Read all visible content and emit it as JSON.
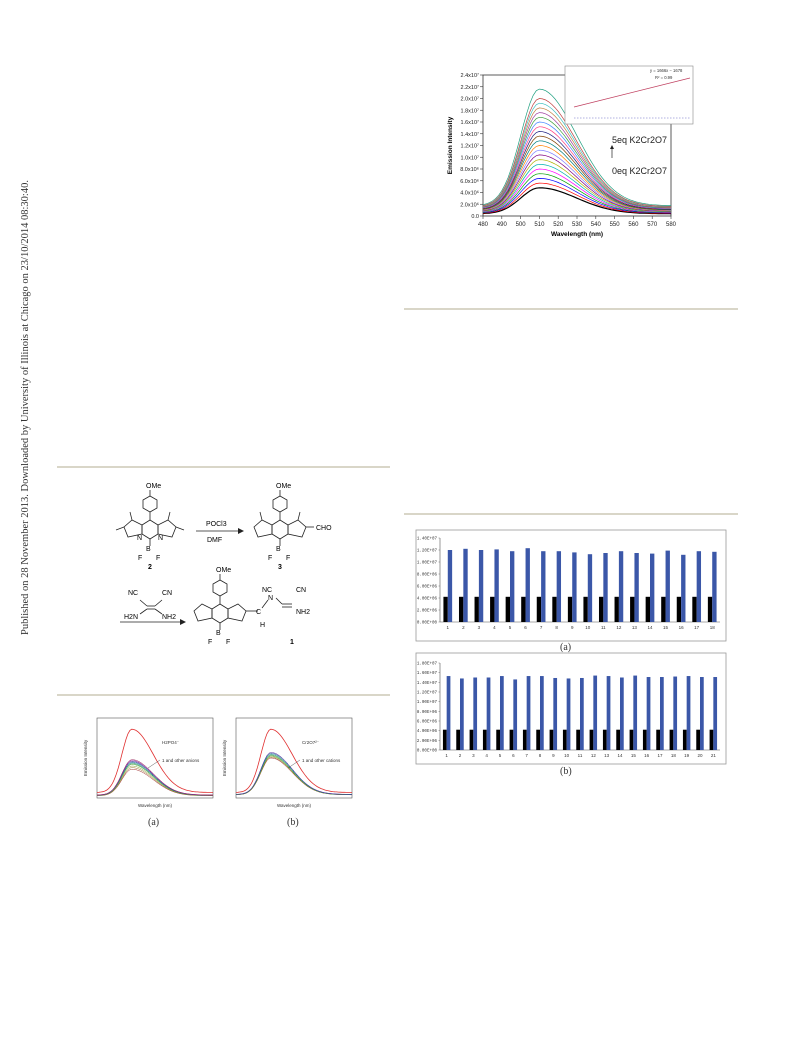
{
  "watermark": "Published on 28 November 2013. Downloaded by University of Illinois at Chicago on 23/10/2014 08:30:40.",
  "scheme": {
    "reagent1_top": "POCl3",
    "reagent1_bottom": "DMF",
    "reagent2_left": "NC",
    "reagent2_right": "CN",
    "reagent2_h2n": "H2N",
    "reagent2_nh2": "NH2",
    "label_2": "2",
    "label_3": "3",
    "label_1": "1",
    "ome": "OMe",
    "cho": "CHO",
    "b": "B",
    "f": "F",
    "n": "N",
    "nc": "NC",
    "cn": "CN",
    "nh2": "NH2",
    "c": "C",
    "h": "H"
  },
  "chart_data": [
    {
      "id": "titration",
      "type": "line",
      "xlabel": "Wavelength (nm)",
      "ylabel": "Emission Intensity",
      "x_ticks": [
        480,
        490,
        500,
        510,
        520,
        530,
        540,
        550,
        560,
        570,
        580
      ],
      "y_ticks": [
        "0.0",
        "2.0x10⁶",
        "4.0x10⁶",
        "6.0x10⁶",
        "8.0x10⁶",
        "1.0x10⁷",
        "1.2x10⁷",
        "1.4x10⁷",
        "1.6x10⁷",
        "1.8x10⁷",
        "2.0x10⁷",
        "2.2x10⁷",
        "2.4x10⁷"
      ],
      "xlim": [
        480,
        580
      ],
      "ylim": [
        0,
        24000000
      ],
      "peak_x": 510,
      "peaks": [
        4800000,
        5600000,
        6400000,
        7200000,
        8000000,
        8800000,
        9600000,
        10400000,
        11200000,
        12000000,
        12800000,
        13600000,
        14400000,
        15200000,
        16000000,
        16800000,
        17600000,
        18400000,
        19200000,
        20000000,
        21600000
      ],
      "colors": [
        "#000000",
        "#ff0000",
        "#0000ff",
        "#00a000",
        "#ff00ff",
        "#00b0b0",
        "#b0b000",
        "#800080",
        "#8080ff",
        "#ff8000",
        "#008080",
        "#804000",
        "#202080",
        "#ff4080",
        "#4080ff",
        "#40a040",
        "#a040a0",
        "#c08040",
        "#40c0c0",
        "#c04040",
        "#20a080"
      ],
      "annotation_top": "5eq  K2Cr2O7",
      "annotation_bottom": "0eq  K2Cr2O7",
      "inset_equation": "y = 1666x − 1678",
      "inset_r2": "R² = 0.99"
    },
    {
      "id": "bars_a",
      "type": "bar",
      "categories": [
        "1",
        "2",
        "3",
        "4",
        "5",
        "6",
        "7",
        "8",
        "9",
        "10",
        "11",
        "12",
        "13",
        "14",
        "15",
        "16",
        "17",
        "18"
      ],
      "y_ticks": [
        "0.00E+00",
        "2.00E+06",
        "4.00E+06",
        "6.00E+06",
        "8.00E+06",
        "1.00E+07",
        "1.20E+07",
        "1.40E+07"
      ],
      "ylim": [
        0,
        14000000
      ],
      "series": [
        {
          "color": "#000000",
          "values": [
            4200000,
            4200000,
            4200000,
            4200000,
            4200000,
            4200000,
            4200000,
            4200000,
            4200000,
            4200000,
            4200000,
            4200000,
            4200000,
            4200000,
            4200000,
            4200000,
            4200000,
            4200000
          ]
        },
        {
          "color": "#3b57a8",
          "values": [
            12000000,
            12200000,
            12000000,
            12100000,
            11800000,
            12300000,
            11800000,
            11800000,
            11600000,
            11300000,
            11500000,
            11800000,
            11500000,
            11400000,
            11900000,
            11200000,
            11800000,
            11700000
          ]
        }
      ],
      "caption": "(a)"
    },
    {
      "id": "bars_b",
      "type": "bar",
      "categories": [
        "1",
        "2",
        "3",
        "4",
        "5",
        "6",
        "7",
        "8",
        "9",
        "10",
        "11",
        "12",
        "13",
        "14",
        "15",
        "16",
        "17",
        "18",
        "19",
        "20",
        "21"
      ],
      "y_ticks": [
        "0.00E+00",
        "2.00E+06",
        "4.00E+06",
        "6.00E+06",
        "8.00E+06",
        "1.00E+07",
        "1.20E+07",
        "1.40E+07",
        "1.60E+07",
        "1.80E+07"
      ],
      "ylim": [
        0,
        18000000
      ],
      "series": [
        {
          "color": "#000000",
          "values": [
            4200000,
            4200000,
            4200000,
            4200000,
            4200000,
            4200000,
            4200000,
            4200000,
            4200000,
            4200000,
            4200000,
            4200000,
            4200000,
            4200000,
            4200000,
            4200000,
            4200000,
            4200000,
            4200000,
            4200000,
            4200000
          ]
        },
        {
          "color": "#3b57a8",
          "values": [
            15300000,
            14800000,
            15000000,
            15000000,
            15300000,
            14600000,
            15300000,
            15300000,
            14900000,
            14800000,
            14900000,
            15400000,
            15300000,
            15000000,
            15400000,
            15100000,
            15100000,
            15200000,
            15300000,
            15100000,
            15100000
          ]
        }
      ],
      "caption": "(b)"
    },
    {
      "id": "anions",
      "type": "line",
      "xlabel": "Wavelength (nm)",
      "ylabel": "Emission Intensity",
      "xlim": [
        480,
        580
      ],
      "peak_x": 510,
      "highlight_label": "H2PO4⁻",
      "group_label": "1 and other anions",
      "highlight_peak": 0.86,
      "group_peaks": [
        0.36,
        0.38,
        0.4,
        0.42,
        0.43,
        0.44,
        0.45,
        0.46,
        0.47,
        0.48
      ],
      "caption": "(a)"
    },
    {
      "id": "cations",
      "type": "line",
      "xlabel": "Wavelength (nm)",
      "ylabel": "Emission Intensity",
      "xlim": [
        480,
        580
      ],
      "peak_x": 510,
      "highlight_label": "Cr2O7²⁻",
      "group_label": "1 and other cations",
      "highlight_peak": 0.86,
      "group_peaks": [
        0.5,
        0.51,
        0.52,
        0.53,
        0.54,
        0.55,
        0.56,
        0.57
      ],
      "caption": "(b)"
    }
  ]
}
